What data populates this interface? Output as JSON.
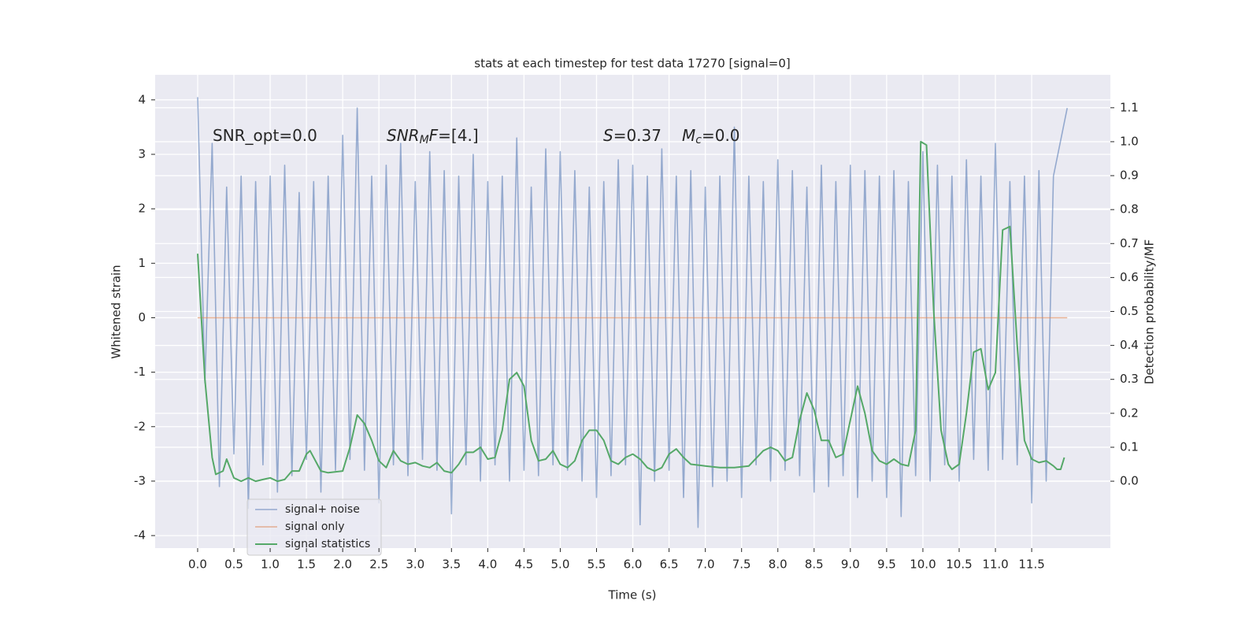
{
  "chart_data": {
    "type": "line",
    "title": "stats at each timestep for test data 17270 [signal=0]",
    "xlabel": "Time (s)",
    "ylabel": "Whitened strain",
    "y2label": "Detection probability/MF",
    "annotations": [
      [
        "SNR_opt=0.0"
      ],
      [
        "SNR",
        "M",
        "F=[4.]"
      ],
      [
        "S",
        "=0.37",
        "M",
        "c",
        "=0.0"
      ]
    ],
    "xlim": [
      -0.586,
      12.585
    ],
    "ylim": [
      -4.23,
      4.46
    ],
    "y2lim": [
      -0.197,
      1.197
    ],
    "xticks": [
      {
        "value": 0,
        "label": "0.0"
      },
      0.5,
      {
        "value": 1,
        "label": "1.0"
      },
      1.5,
      {
        "value": 2,
        "label": "2.0"
      },
      2.5,
      {
        "value": 3,
        "label": "3.0"
      },
      3.5,
      {
        "value": 4,
        "label": "4.0"
      },
      4.5,
      {
        "value": 5,
        "label": "5.0"
      },
      5.5,
      {
        "value": 6,
        "label": "6.0"
      },
      6.5,
      {
        "value": 7,
        "label": "7.0"
      },
      7.5,
      {
        "value": 8,
        "label": "8.0"
      },
      8.5,
      {
        "value": 9,
        "label": "9.0"
      },
      9.5,
      {
        "value": 10,
        "label": "10.0"
      },
      10.5,
      {
        "value": 11,
        "label": "11.0"
      },
      11.5
    ],
    "yticks": [
      -4,
      -3,
      -2,
      -1,
      0,
      1,
      2,
      3,
      4
    ],
    "y2ticks": [
      {
        "value": 0,
        "label": "0.0"
      },
      0.1,
      0.2,
      0.3,
      0.4,
      0.5,
      0.6,
      0.7,
      0.8,
      0.9,
      {
        "value": 1,
        "label": "1.0"
      },
      1.1
    ],
    "grid": true,
    "legend": "lower left",
    "series": [
      {
        "name": "signal+ noise",
        "color": "#4c72b0",
        "x": [
          0,
          0.1,
          0.2,
          0.3,
          0.4,
          0.5,
          0.6,
          0.7,
          0.8,
          0.9,
          1,
          1.1,
          1.2,
          1.3,
          1.4,
          1.5,
          1.6,
          1.7,
          1.8,
          1.9,
          2,
          2.1,
          2.2,
          2.3,
          2.4,
          2.5,
          2.6,
          2.7,
          2.8,
          2.9,
          3,
          3.1,
          3.2,
          3.3,
          3.4,
          3.5,
          3.6,
          3.7,
          3.8,
          3.9,
          4,
          4.1,
          4.2,
          4.3,
          4.4,
          4.5,
          4.6,
          4.7,
          4.8,
          4.9,
          5,
          5.1,
          5.2,
          5.3,
          5.4,
          5.5,
          5.6,
          5.7,
          5.8,
          5.9,
          6,
          6.1,
          6.2,
          6.3,
          6.4,
          6.5,
          6.6,
          6.7,
          6.8,
          6.9,
          7,
          7.1,
          7.2,
          7.3,
          7.4,
          7.5,
          7.6,
          7.7,
          7.8,
          7.9,
          8,
          8.1,
          8.2,
          8.3,
          8.4,
          8.5,
          8.6,
          8.7,
          8.8,
          8.9,
          9,
          9.1,
          9.2,
          9.3,
          9.4,
          9.5,
          9.6,
          9.7,
          9.8,
          9.9,
          10,
          10.1,
          10.2,
          10.3,
          10.4,
          10.5,
          10.6,
          10.7,
          10.8,
          10.9,
          11,
          11.1,
          11.2,
          11.3,
          11.4,
          11.5,
          11.6,
          11.7,
          11.8,
          11.99
        ],
        "values": [
          4.05,
          -1.2,
          3.2,
          -3.1,
          2.4,
          -2.5,
          2.6,
          -3.5,
          2.5,
          -2.7,
          2.6,
          -3.2,
          2.8,
          -2.9,
          2.3,
          -2.6,
          2.5,
          -3.2,
          2.6,
          -2.8,
          3.35,
          -2.6,
          3.85,
          -2.8,
          2.6,
          -3.4,
          2.8,
          -2.7,
          3.2,
          -2.9,
          2.5,
          -2.6,
          3.05,
          -2.8,
          2.7,
          -3.6,
          2.6,
          -2.7,
          3.0,
          -3.0,
          2.5,
          -2.7,
          2.6,
          -3.0,
          3.3,
          -2.8,
          2.4,
          -2.9,
          3.1,
          -2.7,
          3.05,
          -2.8,
          2.7,
          -3.0,
          2.4,
          -3.3,
          2.5,
          -2.9,
          2.9,
          -2.7,
          2.8,
          -3.8,
          2.6,
          -3.0,
          3.1,
          -2.8,
          2.6,
          -3.3,
          2.7,
          -3.85,
          2.4,
          -3.1,
          2.6,
          -3.0,
          3.5,
          -3.3,
          2.6,
          -2.7,
          2.5,
          -3.0,
          2.9,
          -2.8,
          2.7,
          -2.9,
          2.4,
          -3.2,
          2.8,
          -3.1,
          2.5,
          -2.9,
          2.8,
          -3.3,
          2.7,
          -3.0,
          2.6,
          -3.3,
          2.7,
          -3.65,
          2.5,
          -2.9,
          3.05,
          -3.0,
          2.8,
          -2.7,
          2.6,
          -3.0,
          2.9,
          -2.6,
          2.6,
          -2.8,
          3.2,
          -2.6,
          2.5,
          -2.7,
          2.6,
          -3.4,
          2.7,
          -3.0,
          2.6,
          3.85
        ]
      },
      {
        "name": "signal only",
        "color": "#dd8452",
        "x": [
          0,
          11.99
        ],
        "values": [
          0,
          0
        ]
      },
      {
        "name": "signal statistics",
        "color": "#55a868",
        "axis": "y2",
        "x": [
          0,
          0.1,
          0.2,
          0.25,
          0.35,
          0.4,
          0.5,
          0.6,
          0.7,
          0.8,
          0.9,
          1,
          1.1,
          1.2,
          1.3,
          1.4,
          1.5,
          1.55,
          1.7,
          1.8,
          2,
          2.1,
          2.2,
          2.3,
          2.4,
          2.5,
          2.6,
          2.7,
          2.8,
          2.9,
          3,
          3.1,
          3.2,
          3.3,
          3.4,
          3.5,
          3.6,
          3.7,
          3.8,
          3.9,
          4,
          4.1,
          4.2,
          4.3,
          4.4,
          4.5,
          4.6,
          4.7,
          4.8,
          4.9,
          5,
          5.1,
          5.2,
          5.3,
          5.4,
          5.5,
          5.6,
          5.7,
          5.8,
          5.9,
          6,
          6.1,
          6.2,
          6.3,
          6.4,
          6.5,
          6.6,
          6.7,
          6.8,
          7,
          7.2,
          7.4,
          7.6,
          7.8,
          7.9,
          8,
          8.1,
          8.2,
          8.3,
          8.4,
          8.5,
          8.6,
          8.7,
          8.8,
          8.9,
          9,
          9.1,
          9.2,
          9.3,
          9.4,
          9.5,
          9.6,
          9.7,
          9.8,
          9.9,
          9.97,
          10.05,
          10.15,
          10.25,
          10.35,
          10.4,
          10.5,
          10.6,
          10.7,
          10.8,
          10.9,
          11,
          11.1,
          11.2,
          11.3,
          11.4,
          11.5,
          11.6,
          11.7,
          11.8,
          11.85,
          11.9,
          11.95
        ],
        "values": [
          0.67,
          0.3,
          0.07,
          0.02,
          0.03,
          0.065,
          0.01,
          0.0,
          0.01,
          0.0,
          0.005,
          0.01,
          0.0,
          0.005,
          0.03,
          0.03,
          0.08,
          0.09,
          0.03,
          0.025,
          0.03,
          0.1,
          0.195,
          0.17,
          0.12,
          0.06,
          0.04,
          0.09,
          0.06,
          0.05,
          0.055,
          0.045,
          0.04,
          0.055,
          0.03,
          0.025,
          0.05,
          0.085,
          0.085,
          0.1,
          0.065,
          0.07,
          0.15,
          0.3,
          0.32,
          0.28,
          0.12,
          0.06,
          0.065,
          0.09,
          0.05,
          0.04,
          0.06,
          0.12,
          0.15,
          0.15,
          0.12,
          0.06,
          0.05,
          0.07,
          0.08,
          0.065,
          0.04,
          0.03,
          0.04,
          0.08,
          0.095,
          0.07,
          0.05,
          0.045,
          0.04,
          0.04,
          0.045,
          0.09,
          0.1,
          0.09,
          0.06,
          0.07,
          0.18,
          0.26,
          0.21,
          0.12,
          0.12,
          0.07,
          0.08,
          0.18,
          0.28,
          0.2,
          0.09,
          0.06,
          0.05,
          0.065,
          0.05,
          0.045,
          0.15,
          1.0,
          0.99,
          0.5,
          0.15,
          0.05,
          0.035,
          0.05,
          0.2,
          0.38,
          0.39,
          0.27,
          0.32,
          0.74,
          0.75,
          0.4,
          0.12,
          0.065,
          0.055,
          0.06,
          0.045,
          0.035,
          0.035,
          0.07
        ]
      }
    ]
  }
}
